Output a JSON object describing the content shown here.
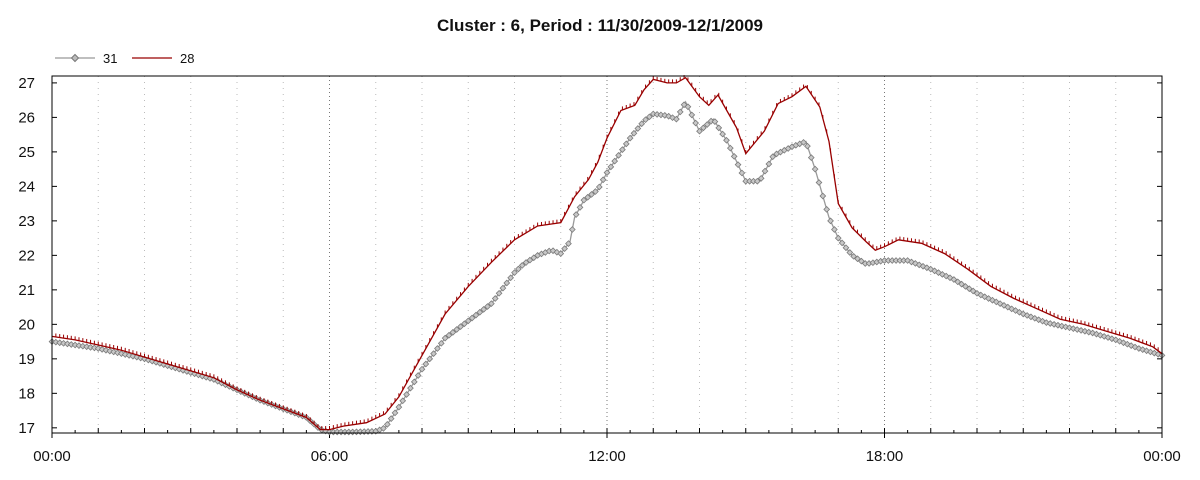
{
  "chart_data": {
    "type": "line",
    "title": "Cluster : 6, Period : 11/30/2009-12/1/2009",
    "xlabel": "",
    "ylabel": "",
    "x_unit": "hours",
    "xlim": [
      0,
      24
    ],
    "ylim": [
      16.85,
      27.2
    ],
    "x_ticks": [
      {
        "value": 0,
        "label": "00:00"
      },
      {
        "value": 6,
        "label": "06:00"
      },
      {
        "value": 12,
        "label": "12:00"
      },
      {
        "value": 18,
        "label": "18:00"
      },
      {
        "value": 24,
        "label": "00:00"
      }
    ],
    "y_ticks": [
      17,
      18,
      19,
      20,
      21,
      22,
      23,
      24,
      25,
      26,
      27
    ],
    "grid": true,
    "legend_position": "top-left",
    "series": [
      {
        "name": "31",
        "color": "#999999",
        "marker": "diamond",
        "points": [
          [
            0,
            19.5
          ],
          [
            0.5,
            19.4
          ],
          [
            1,
            19.3
          ],
          [
            1.5,
            19.15
          ],
          [
            2,
            19.0
          ],
          [
            2.5,
            18.8
          ],
          [
            3,
            18.6
          ],
          [
            3.5,
            18.4
          ],
          [
            4,
            18.1
          ],
          [
            4.5,
            17.8
          ],
          [
            5,
            17.55
          ],
          [
            5.5,
            17.3
          ],
          [
            5.8,
            16.95
          ],
          [
            6,
            16.88
          ],
          [
            6.5,
            16.88
          ],
          [
            7,
            16.9
          ],
          [
            7.2,
            17.0
          ],
          [
            7.5,
            17.6
          ],
          [
            8,
            18.7
          ],
          [
            8.5,
            19.6
          ],
          [
            9,
            20.1
          ],
          [
            9.5,
            20.6
          ],
          [
            10,
            21.5
          ],
          [
            10.2,
            21.75
          ],
          [
            10.5,
            22.0
          ],
          [
            10.8,
            22.15
          ],
          [
            11,
            22.05
          ],
          [
            11.2,
            22.4
          ],
          [
            11.3,
            23.1
          ],
          [
            11.5,
            23.6
          ],
          [
            11.8,
            23.9
          ],
          [
            12,
            24.4
          ],
          [
            12.5,
            25.4
          ],
          [
            12.8,
            25.9
          ],
          [
            13,
            26.1
          ],
          [
            13.3,
            26.05
          ],
          [
            13.5,
            25.95
          ],
          [
            13.7,
            26.45
          ],
          [
            14,
            25.6
          ],
          [
            14.3,
            25.95
          ],
          [
            14.6,
            25.3
          ],
          [
            15,
            24.15
          ],
          [
            15.3,
            24.15
          ],
          [
            15.6,
            24.9
          ],
          [
            16,
            25.15
          ],
          [
            16.3,
            25.3
          ],
          [
            16.5,
            24.5
          ],
          [
            16.8,
            23.1
          ],
          [
            17,
            22.5
          ],
          [
            17.3,
            22.0
          ],
          [
            17.6,
            21.75
          ],
          [
            18,
            21.85
          ],
          [
            18.5,
            21.85
          ],
          [
            19,
            21.6
          ],
          [
            19.5,
            21.3
          ],
          [
            20,
            20.9
          ],
          [
            20.5,
            20.6
          ],
          [
            21,
            20.3
          ],
          [
            21.5,
            20.05
          ],
          [
            22,
            19.9
          ],
          [
            22.5,
            19.75
          ],
          [
            23,
            19.55
          ],
          [
            23.5,
            19.3
          ],
          [
            24,
            19.1
          ]
        ]
      },
      {
        "name": "28",
        "color": "#990000",
        "marker": "tick",
        "points": [
          [
            0,
            19.65
          ],
          [
            0.5,
            19.55
          ],
          [
            1,
            19.4
          ],
          [
            1.5,
            19.25
          ],
          [
            2,
            19.05
          ],
          [
            2.5,
            18.85
          ],
          [
            3,
            18.65
          ],
          [
            3.5,
            18.45
          ],
          [
            4,
            18.1
          ],
          [
            4.5,
            17.8
          ],
          [
            5,
            17.55
          ],
          [
            5.5,
            17.3
          ],
          [
            5.8,
            16.95
          ],
          [
            6,
            16.95
          ],
          [
            6.3,
            17.05
          ],
          [
            6.8,
            17.15
          ],
          [
            7.2,
            17.4
          ],
          [
            7.5,
            17.9
          ],
          [
            8,
            19.1
          ],
          [
            8.5,
            20.3
          ],
          [
            9,
            21.1
          ],
          [
            9.5,
            21.8
          ],
          [
            10,
            22.45
          ],
          [
            10.5,
            22.85
          ],
          [
            11,
            22.95
          ],
          [
            11.3,
            23.7
          ],
          [
            11.6,
            24.2
          ],
          [
            11.8,
            24.7
          ],
          [
            12,
            25.4
          ],
          [
            12.3,
            26.2
          ],
          [
            12.6,
            26.35
          ],
          [
            12.8,
            26.8
          ],
          [
            13,
            27.1
          ],
          [
            13.3,
            27.0
          ],
          [
            13.5,
            27.0
          ],
          [
            13.7,
            27.15
          ],
          [
            14,
            26.6
          ],
          [
            14.2,
            26.35
          ],
          [
            14.4,
            26.65
          ],
          [
            14.8,
            25.7
          ],
          [
            15,
            24.95
          ],
          [
            15.4,
            25.6
          ],
          [
            15.7,
            26.4
          ],
          [
            16,
            26.6
          ],
          [
            16.3,
            26.9
          ],
          [
            16.6,
            26.3
          ],
          [
            16.8,
            25.3
          ],
          [
            17,
            23.5
          ],
          [
            17.3,
            22.8
          ],
          [
            17.6,
            22.4
          ],
          [
            17.8,
            22.15
          ],
          [
            18,
            22.25
          ],
          [
            18.3,
            22.45
          ],
          [
            18.8,
            22.35
          ],
          [
            19.3,
            22.05
          ],
          [
            19.8,
            21.6
          ],
          [
            20.3,
            21.1
          ],
          [
            20.8,
            20.75
          ],
          [
            21.3,
            20.45
          ],
          [
            21.8,
            20.15
          ],
          [
            22.3,
            20.0
          ],
          [
            22.8,
            19.8
          ],
          [
            23.3,
            19.6
          ],
          [
            23.8,
            19.35
          ],
          [
            24,
            19.15
          ]
        ]
      }
    ]
  }
}
